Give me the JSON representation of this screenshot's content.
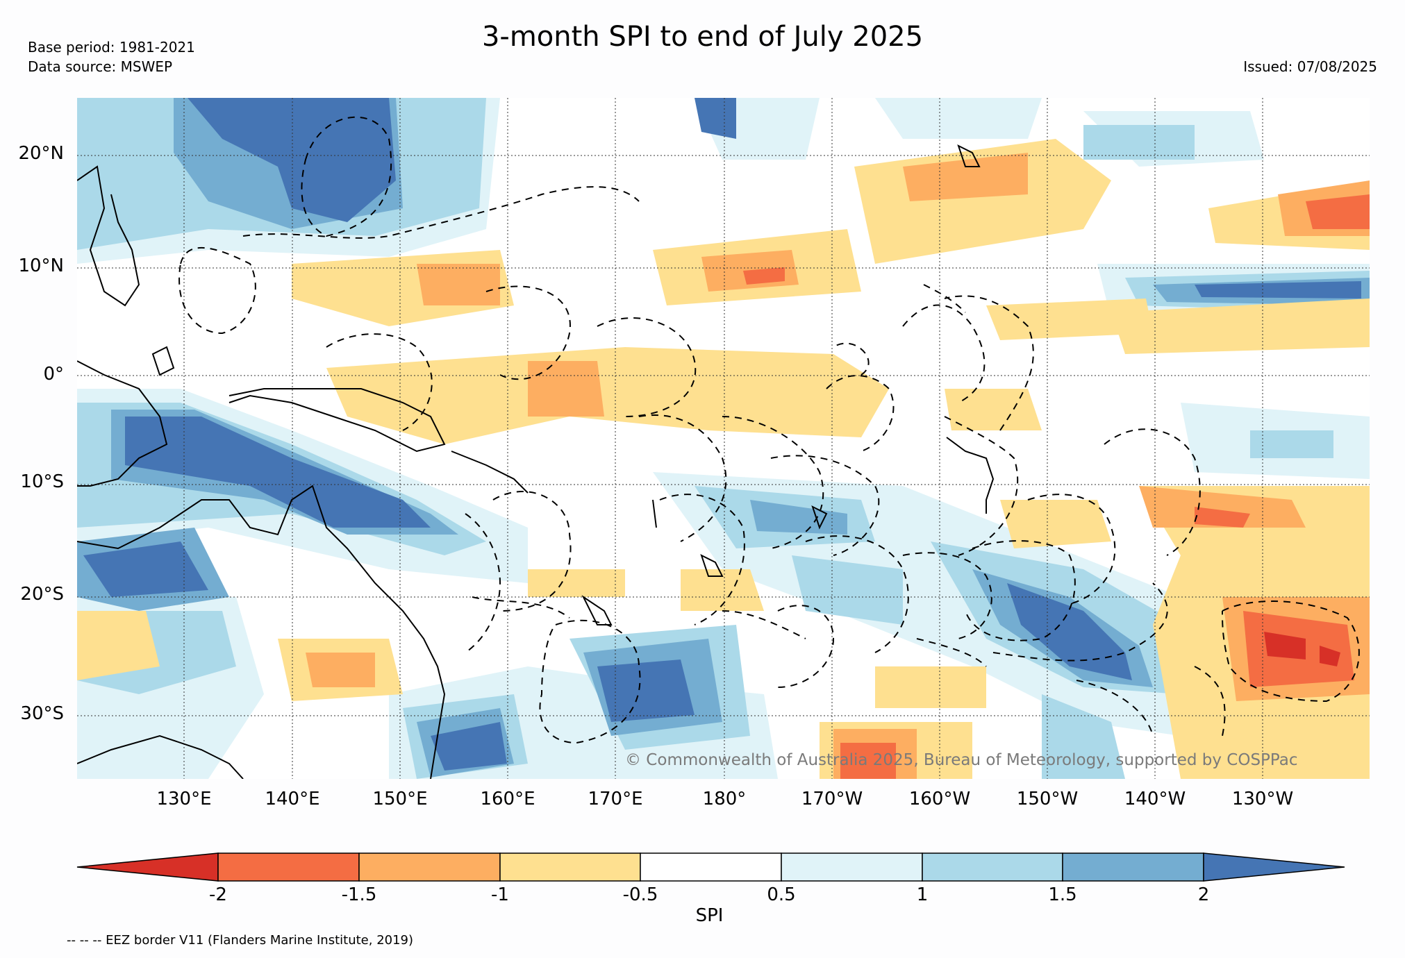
{
  "header": {
    "title": "3-month SPI to end of July 2025",
    "base_period": "Base period: 1981-2021",
    "data_source": "Data source: MSWEP",
    "issued": "Issued: 07/08/2025"
  },
  "map": {
    "lat_labels": [
      "20°N",
      "10°N",
      "0°",
      "10°S",
      "20°S",
      "30°S"
    ],
    "lon_labels": [
      "130°E",
      "140°E",
      "150°E",
      "160°E",
      "170°E",
      "180°",
      "170°W",
      "160°W",
      "150°W",
      "140°W",
      "130°W"
    ],
    "copyright": "© Commonwealth of Australia 2025, Bureau of Meteorology, supported by COSPPac",
    "extent": {
      "lon_min": 120,
      "lon_max": 240,
      "lat_min": -36,
      "lat_max": 25
    }
  },
  "legend": {
    "label": "SPI",
    "ticks": [
      "-2",
      "-1.5",
      "-1",
      "-0.5",
      "0.5",
      "1",
      "1.5",
      "2"
    ],
    "colors": {
      "below_-2": "#d73027",
      "-2_-1.5": "#f46d43",
      "-1.5_-1": "#fdae61",
      "-1_-0.5": "#fee090",
      "-0.5_0.5": "#ffffff",
      "0.5_1": "#e0f3f8",
      "1_1.5": "#abd9e9",
      "1.5_2": "#74add1",
      "above_2": "#4575b4"
    },
    "eez_note": "-- -- -- EEZ border V11 (Flanders Marine Institute, 2019)"
  }
}
